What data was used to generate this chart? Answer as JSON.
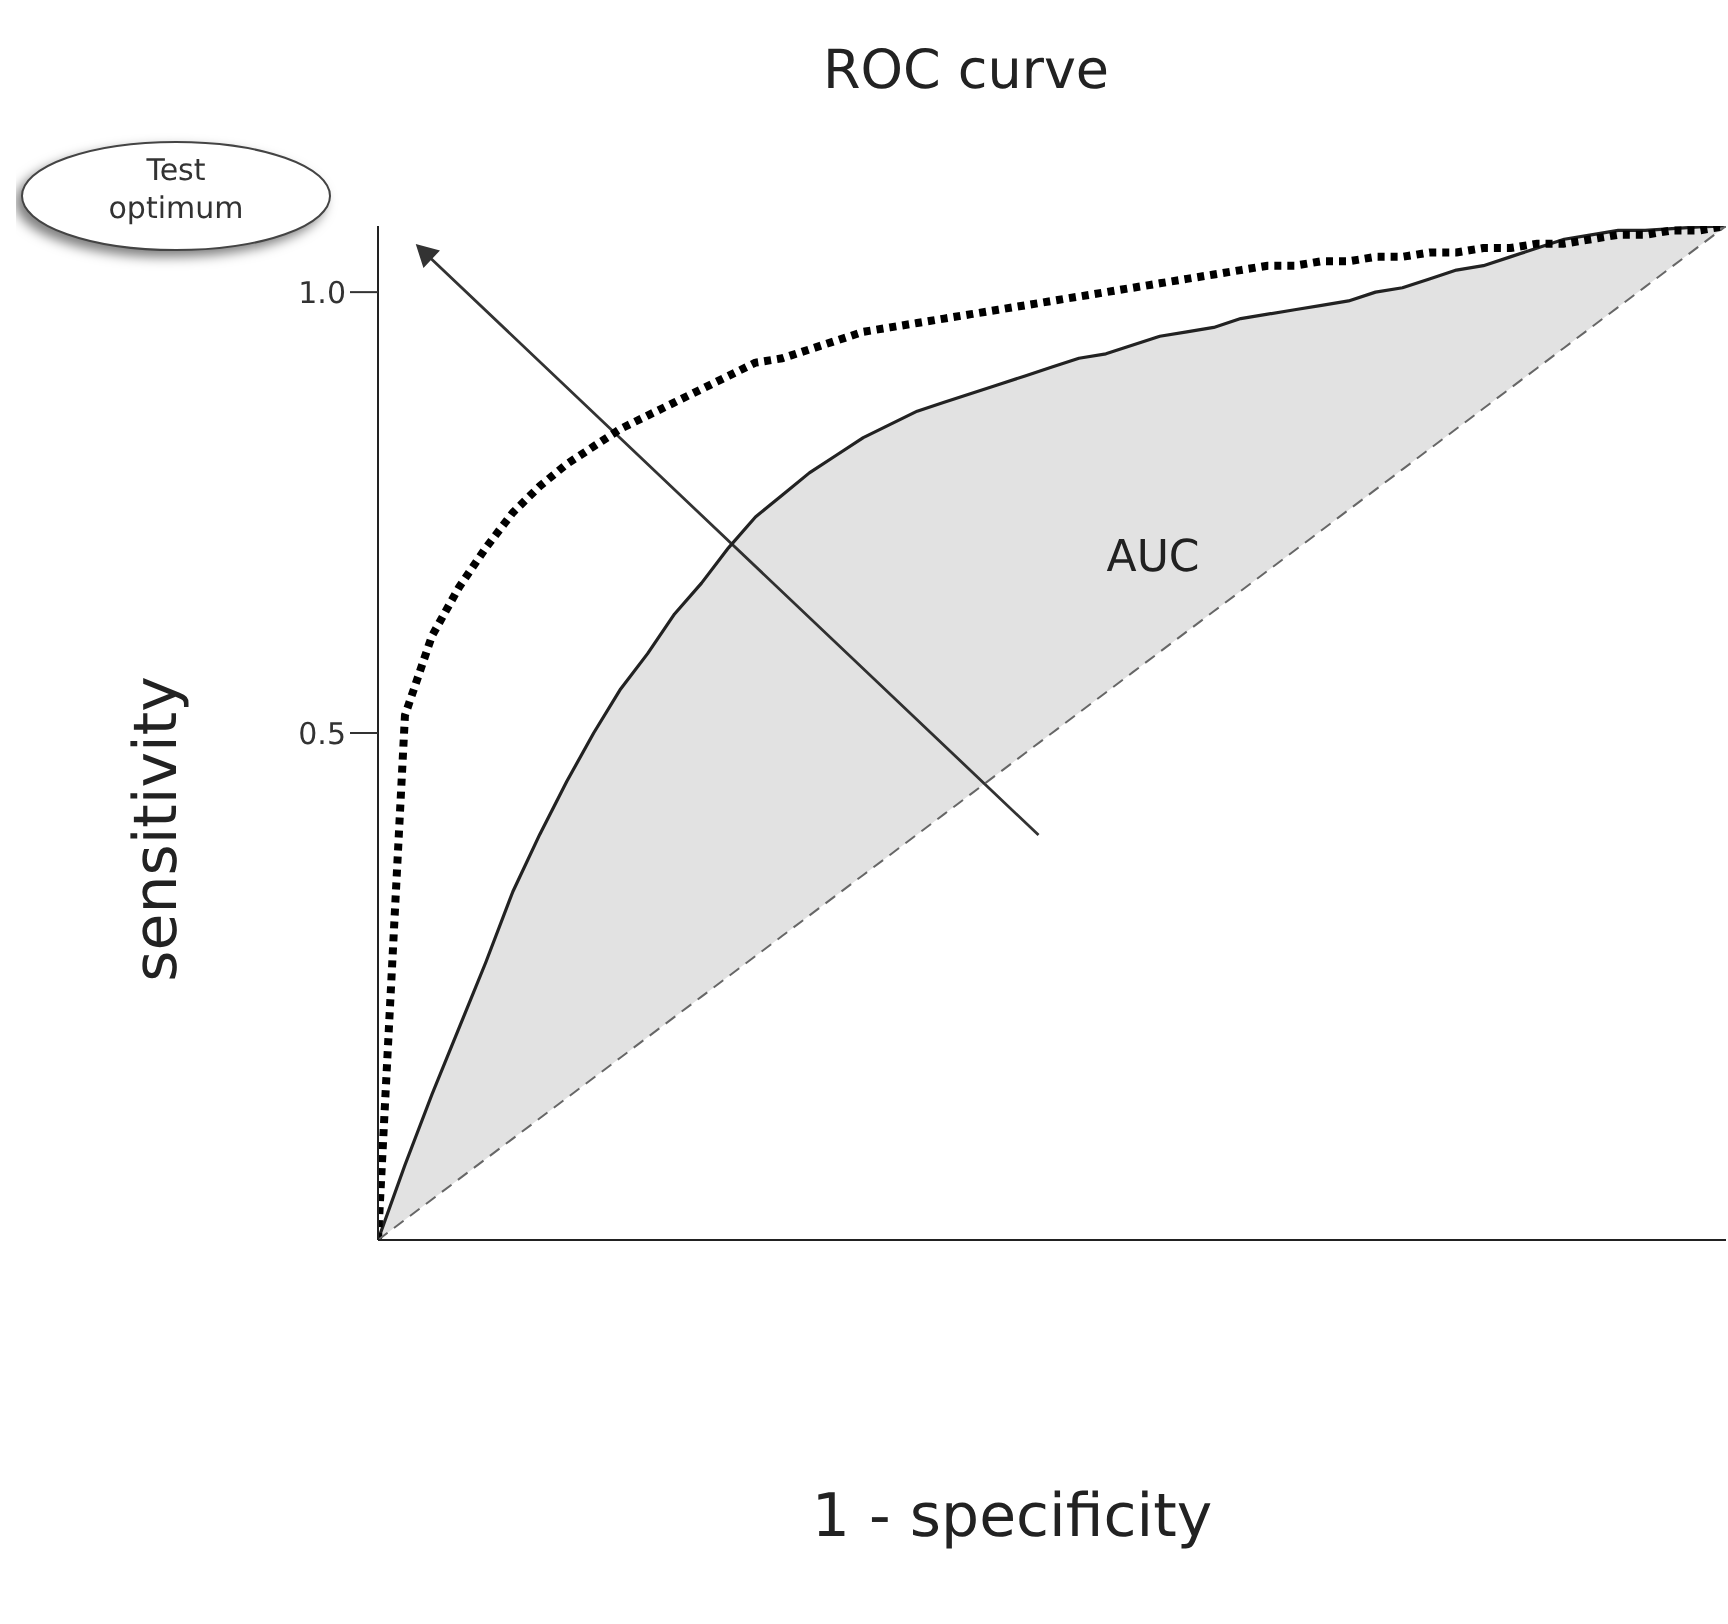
{
  "chart_data": {
    "type": "line",
    "title": "ROC curve",
    "xlabel": "1 - specificity",
    "ylabel": "sensitivity",
    "annotations": [
      "Test optimum",
      "AUC"
    ],
    "categories": [
      null,
      null,
      null,
      null,
      null,
      null,
      null,
      null,
      null,
      null,
      null,
      null,
      null,
      null,
      null,
      null,
      null,
      null,
      null,
      null,
      null,
      null,
      null,
      null,
      null,
      null,
      null,
      null,
      null,
      null,
      null,
      null,
      null,
      null,
      null,
      null,
      null,
      null,
      null,
      null,
      null,
      null,
      null,
      null,
      null,
      null,
      null,
      null,
      null,
      null,
      null
    ],
    "ylim": [
      -0.075,
      1.075
    ],
    "yticks": [
      {
        "value": 0.5,
        "label": "0.5"
      },
      {
        "value": 1,
        "label": "1.0"
      }
    ],
    "tick_labels": "y",
    "marker": "none",
    "series": [
      {
        "color": "#222222",
        "line_style": "solid",
        "values": [
          -0.075,
          0.01,
          0.09,
          0.165,
          0.24,
          0.32,
          0.385,
          0.445,
          0.5,
          0.55,
          0.59,
          0.635,
          0.67,
          0.71,
          0.745,
          0.77,
          0.795,
          0.815,
          0.835,
          0.85,
          0.865,
          0.875,
          0.885,
          0.895,
          0.905,
          0.915,
          0.925,
          0.93,
          0.94,
          0.95,
          0.955,
          0.96,
          0.97,
          0.975,
          0.98,
          0.985,
          0.99,
          1.0,
          1.005,
          1.015,
          1.025,
          1.03,
          1.04,
          1.05,
          1.06,
          1.065,
          1.07,
          1.07,
          1.072,
          1.074,
          1.075
        ],
        "lower": [
          -0.075,
          -0.052,
          -0.029,
          -0.006,
          0.017,
          0.04,
          0.063,
          0.086,
          0.109,
          0.132,
          0.155,
          0.178,
          0.201,
          0.224,
          0.247,
          0.27,
          0.293,
          0.316,
          0.339,
          0.362,
          0.385,
          0.408,
          0.431,
          0.454,
          0.477,
          0.5,
          0.523,
          0.546,
          0.569,
          0.592,
          0.615,
          0.638,
          0.661,
          0.684,
          0.707,
          0.73,
          0.753,
          0.776,
          0.799,
          0.822,
          0.845,
          0.868,
          0.891,
          0.914,
          0.937,
          0.96,
          0.983,
          1.006,
          1.029,
          1.052,
          1.075
        ],
        "upper": [
          -0.075,
          0.01,
          0.09,
          0.165,
          0.24,
          0.32,
          0.385,
          0.445,
          0.5,
          0.55,
          0.59,
          0.635,
          0.67,
          0.71,
          0.745,
          0.77,
          0.795,
          0.815,
          0.835,
          0.85,
          0.865,
          0.875,
          0.885,
          0.895,
          0.905,
          0.915,
          0.925,
          0.93,
          0.94,
          0.95,
          0.955,
          0.96,
          0.97,
          0.975,
          0.98,
          0.985,
          0.99,
          1.0,
          1.005,
          1.015,
          1.025,
          1.03,
          1.04,
          1.05,
          1.06,
          1.065,
          1.07,
          1.07,
          1.072,
          1.074,
          1.075
        ]
      },
      {
        "color": "#000000",
        "line_style": "dotted",
        "values": [
          -0.075,
          0.52,
          0.61,
          0.665,
          0.71,
          0.75,
          0.78,
          0.805,
          0.825,
          0.845,
          0.86,
          0.875,
          0.89,
          0.905,
          0.92,
          0.925,
          0.935,
          0.945,
          0.955,
          0.96,
          0.965,
          0.97,
          0.975,
          0.98,
          0.985,
          0.99,
          0.995,
          1.0,
          1.005,
          1.01,
          1.015,
          1.02,
          1.025,
          1.03,
          1.03,
          1.035,
          1.035,
          1.04,
          1.04,
          1.045,
          1.045,
          1.05,
          1.05,
          1.055,
          1.055,
          1.06,
          1.065,
          1.065,
          1.07,
          1.07,
          1.075
        ]
      },
      {
        "color": "#666666",
        "line_style": "dashed",
        "values": [
          -0.075,
          -0.052,
          -0.029,
          -0.006,
          0.017,
          0.04,
          0.063,
          0.086,
          0.109,
          0.132,
          0.155,
          0.178,
          0.201,
          0.224,
          0.247,
          0.27,
          0.293,
          0.316,
          0.339,
          0.362,
          0.385,
          0.408,
          0.431,
          0.454,
          0.477,
          0.5,
          0.523,
          0.546,
          0.569,
          0.592,
          0.615,
          0.638,
          0.661,
          0.684,
          0.707,
          0.73,
          0.753,
          0.776,
          0.799,
          0.822,
          0.845,
          0.868,
          0.891,
          0.914,
          0.937,
          0.96,
          0.983,
          1.006,
          1.029,
          1.052,
          1.075
        ]
      }
    ]
  }
}
